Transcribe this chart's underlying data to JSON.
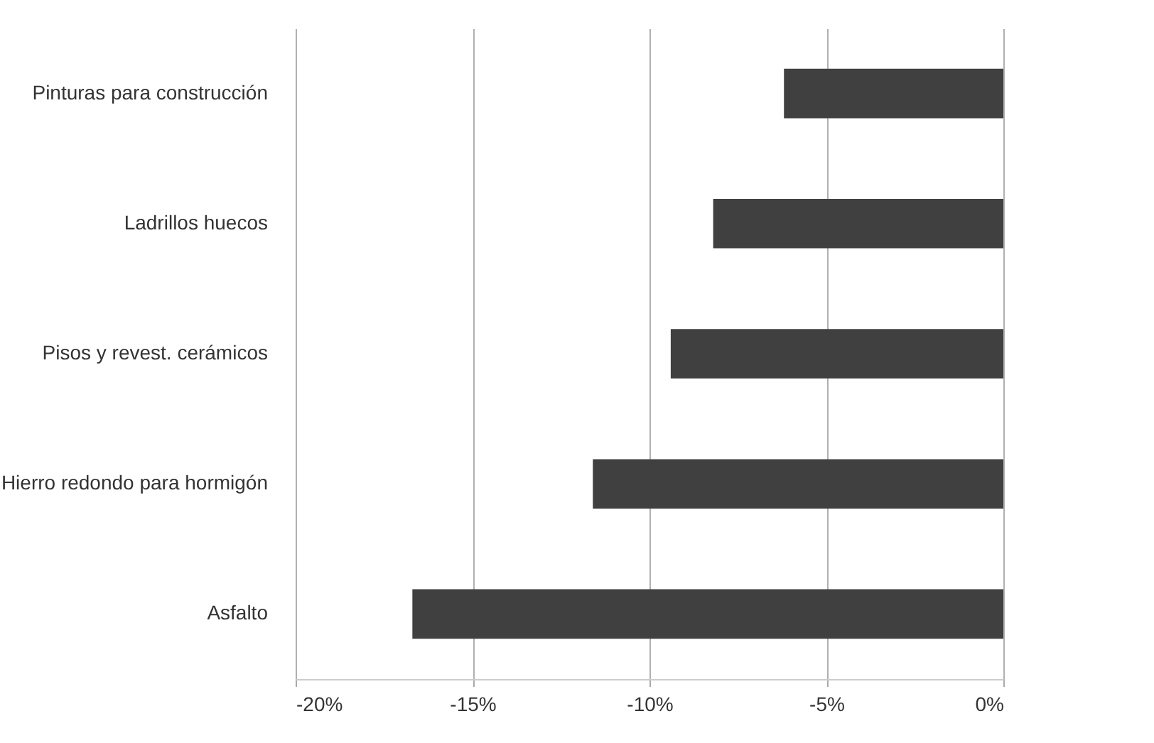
{
  "chart_data": {
    "type": "bar",
    "orientation": "horizontal",
    "categories": [
      "Pinturas para construcción",
      "Ladrillos huecos",
      "Pisos y revest. cerámicos",
      "Hierro redondo para hormigón",
      "Asfalto"
    ],
    "values": [
      -6.2,
      -8.2,
      -9.4,
      -11.6,
      -16.7
    ],
    "color": "#404040",
    "xlim": [
      -20,
      0
    ],
    "xticks": [
      {
        "value": -20,
        "label": "-20%"
      },
      {
        "value": -15,
        "label": "-15%"
      },
      {
        "value": -10,
        "label": "-10%"
      },
      {
        "value": -5,
        "label": "-5%"
      },
      {
        "value": 0,
        "label": "0%"
      }
    ],
    "grid": "x"
  }
}
